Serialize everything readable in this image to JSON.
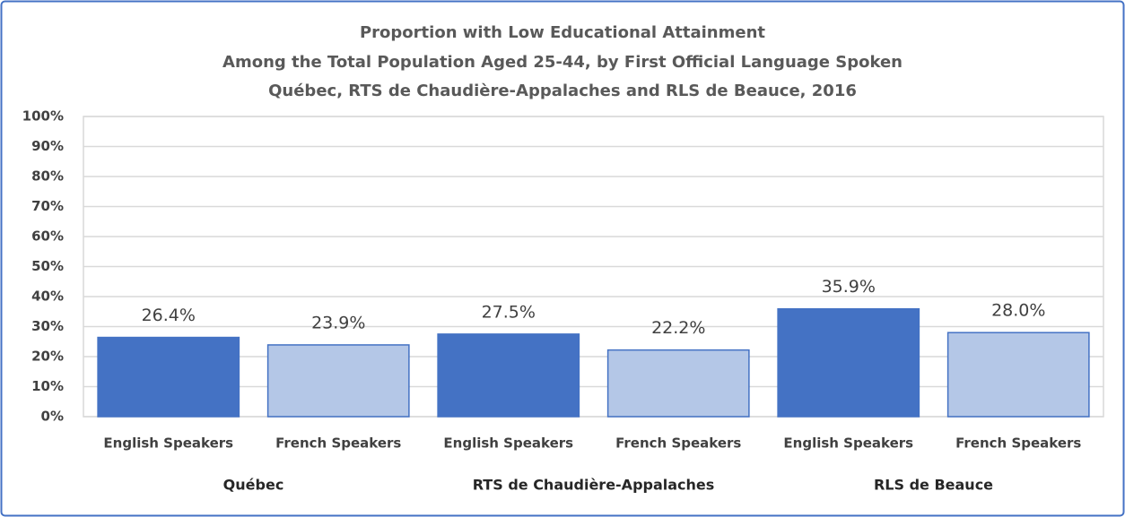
{
  "chart_data": {
    "type": "bar",
    "title": [
      "Proportion with Low Educational Attainment",
      "Among the Total Population Aged 25-44, by First Official Language Spoken",
      "Québec, RTS de Chaudière-Appalaches and RLS de Beauce, 2016"
    ],
    "categories": [
      "Québec",
      "RTS de Chaudière-Appalaches",
      "RLS de Beauce"
    ],
    "series": [
      {
        "name": "English Speakers",
        "color": "#4472c4",
        "values": [
          26.4,
          27.5,
          35.9
        ],
        "value_labels": [
          "26.4%",
          "27.5%",
          "35.9%"
        ]
      },
      {
        "name": "French Speakers",
        "color": "#b4c7e7",
        "values": [
          23.9,
          22.2,
          28.0
        ],
        "value_labels": [
          "23.9%",
          "22.2%",
          "28.0%"
        ]
      }
    ],
    "ylim": [
      0,
      100
    ],
    "yticks": [
      {
        "value": 0,
        "label": "0%"
      },
      {
        "value": 10,
        "label": "10%"
      },
      {
        "value": 20,
        "label": "20%"
      },
      {
        "value": 30,
        "label": "30%"
      },
      {
        "value": 40,
        "label": "40%"
      },
      {
        "value": 50,
        "label": "50%"
      },
      {
        "value": 60,
        "label": "60%"
      },
      {
        "value": 70,
        "label": "70%"
      },
      {
        "value": 80,
        "label": "80%"
      },
      {
        "value": 90,
        "label": "90%"
      },
      {
        "value": 100,
        "label": "100%"
      }
    ],
    "grid": true
  }
}
